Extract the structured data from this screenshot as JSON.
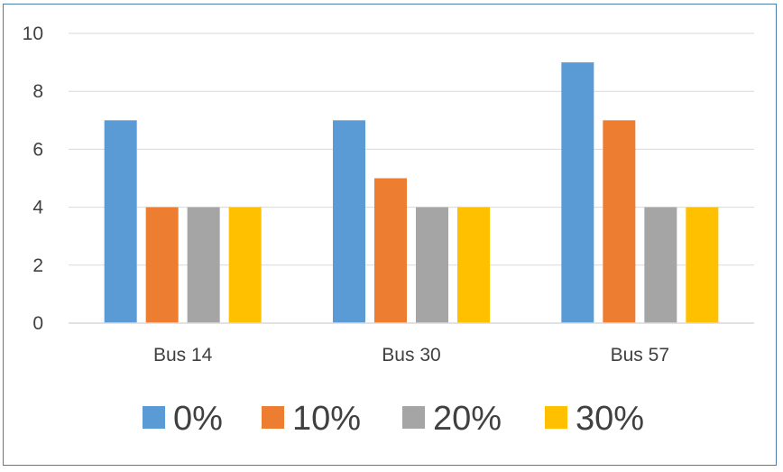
{
  "chart_data": {
    "type": "bar",
    "categories": [
      "Bus 14",
      "Bus 30",
      "Bus 57"
    ],
    "series": [
      {
        "name": "0%",
        "values": [
          7,
          7,
          9
        ],
        "color": "#5B9BD5"
      },
      {
        "name": "10%",
        "values": [
          4,
          5,
          7
        ],
        "color": "#ED7D31"
      },
      {
        "name": "20%",
        "values": [
          4,
          4,
          4
        ],
        "color": "#A5A5A5"
      },
      {
        "name": "30%",
        "values": [
          4,
          4,
          4
        ],
        "color": "#FFC000"
      }
    ],
    "title": "",
    "xlabel": "",
    "ylabel": "",
    "ylim": [
      0,
      10
    ],
    "yticks": [
      0,
      2,
      4,
      6,
      8,
      10
    ],
    "grid": true,
    "legend_position": "bottom"
  }
}
